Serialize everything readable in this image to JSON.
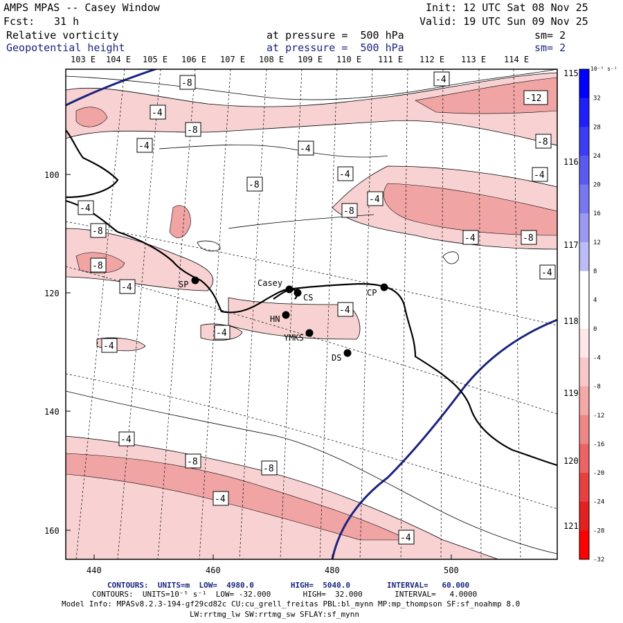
{
  "header": {
    "title": "AMPS MPAS -- Casey Window",
    "init": "Init: 12 UTC Sat 08 Nov 25",
    "fcst_label": "Fcst:",
    "fcst_value": "31 h",
    "valid": "Valid: 19 UTC Sun 09 Nov 25",
    "field1_name": "Relative vorticity",
    "field1_pressure": "at pressure =  500 hPa",
    "field1_sm": "sm= 2",
    "field2_name": "Geopotential height",
    "field2_pressure": "at pressure =  500 hPa",
    "field2_sm": "sm= 2"
  },
  "axes": {
    "top_lon": [
      "103 E",
      "104 E",
      "105 E",
      "106 E",
      "107 E",
      "108 E",
      "109 E",
      "110 E",
      "111 E",
      "112 E",
      "113 E",
      "114 E"
    ],
    "left_y": [
      "100",
      "120",
      "140",
      "160"
    ],
    "bottom_x": [
      "440",
      "460",
      "480",
      "500"
    ],
    "right_lon": [
      "115 E",
      "116 E",
      "117 E",
      "118 E",
      "119 E",
      "120 E",
      "121 E"
    ]
  },
  "colorbar": {
    "unit": "10⁻⁵ s⁻¹",
    "labels": [
      "32",
      "28",
      "24",
      "20",
      "16",
      "12",
      "8",
      "4",
      "0",
      "-4",
      "-8",
      "-12",
      "-16",
      "-20",
      "-24",
      "-28",
      "-32"
    ],
    "colors": [
      "#0000ff",
      "#1f1ff9",
      "#3c3cf5",
      "#5a5af2",
      "#7878f3",
      "#9a9af3",
      "#bcbcf6",
      "#ffffff",
      "#ffffff",
      "#fde7e7",
      "#f9c8c8",
      "#f4a8a8",
      "#f08787",
      "#ec6464",
      "#e84040",
      "#e42020",
      "#ff0000"
    ]
  },
  "stations": [
    {
      "code": "SP"
    },
    {
      "code": "Casey"
    },
    {
      "code": "CS"
    },
    {
      "code": "CP"
    },
    {
      "code": "HN"
    },
    {
      "code": "YMKS"
    },
    {
      "code": "DS"
    }
  ],
  "contour_labels": [
    "-8",
    "-4",
    "-8",
    "-4",
    "-4",
    "-12",
    "-8",
    "-8",
    "-4",
    "-4",
    "-8",
    "-4",
    "-4",
    "-8",
    "-4",
    "-8",
    "-4",
    "-4",
    "-8",
    "-4",
    "-4",
    "-4",
    "-4",
    "-4",
    "-4",
    "-8",
    "-8",
    "-4",
    "-4",
    "-4"
  ],
  "footer": {
    "line1": "CONTOURS:  UNITS=m  LOW=  4980.0        HIGH=  5040.0        INTERVAL=   60.000",
    "line2": "CONTOURS:  UNITS=10⁻⁵ s⁻¹  LOW= -32.000       HIGH=  32.000       INTERVAL=   4.0000",
    "line3": "Model Info: MPASv8.2.3-194-gf29cd82c CU:cu_grell_freitas PBL:bl_mynn MP:mp_thompson SF:sf_noahmp 8.0",
    "line4": "LW:rrtmg_lw SW:rrtmg_sw SFLAY:sf_mynn"
  },
  "colors": {
    "height_contour": "#1a237e",
    "coast": "#000000",
    "neg_shade": "#f4b0b0"
  }
}
